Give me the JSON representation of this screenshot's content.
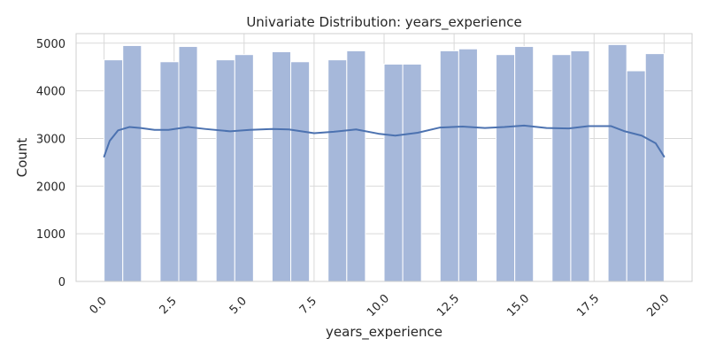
{
  "chart_data": {
    "type": "bar",
    "title": "Univariate Distribution: years_experience",
    "xlabel": "years_experience",
    "ylabel": "Count",
    "xlim": [
      -1.0,
      21.0
    ],
    "ylim": [
      0,
      5200
    ],
    "grid": true,
    "x_ticks": [
      {
        "value": 0.0,
        "label": "0.0"
      },
      {
        "value": 2.5,
        "label": "2.5"
      },
      {
        "value": 5.0,
        "label": "5.0"
      },
      {
        "value": 7.5,
        "label": "7.5"
      },
      {
        "value": 10.0,
        "label": "10.0"
      },
      {
        "value": 12.5,
        "label": "12.5"
      },
      {
        "value": 15.0,
        "label": "15.0"
      },
      {
        "value": 17.5,
        "label": "17.5"
      },
      {
        "value": 20.0,
        "label": "20.0"
      }
    ],
    "y_ticks": [
      {
        "value": 0,
        "label": "0"
      },
      {
        "value": 1000,
        "label": "1000"
      },
      {
        "value": 2000,
        "label": "2000"
      },
      {
        "value": 3000,
        "label": "3000"
      },
      {
        "value": 4000,
        "label": "4000"
      },
      {
        "value": 5000,
        "label": "5000"
      }
    ],
    "bins": [
      {
        "x0": 0.0,
        "x1": 0.667,
        "value": 4650
      },
      {
        "x0": 0.667,
        "x1": 1.333,
        "value": 4950
      },
      {
        "x0": 2.0,
        "x1": 2.667,
        "value": 4610
      },
      {
        "x0": 2.667,
        "x1": 3.333,
        "value": 4930
      },
      {
        "x0": 4.0,
        "x1": 4.667,
        "value": 4650
      },
      {
        "x0": 4.667,
        "x1": 5.333,
        "value": 4760
      },
      {
        "x0": 6.0,
        "x1": 6.667,
        "value": 4820
      },
      {
        "x0": 6.667,
        "x1": 7.333,
        "value": 4610
      },
      {
        "x0": 8.0,
        "x1": 8.667,
        "value": 4650
      },
      {
        "x0": 8.667,
        "x1": 9.333,
        "value": 4840
      },
      {
        "x0": 10.0,
        "x1": 10.667,
        "value": 4560
      },
      {
        "x0": 10.667,
        "x1": 11.333,
        "value": 4560
      },
      {
        "x0": 12.0,
        "x1": 12.667,
        "value": 4840
      },
      {
        "x0": 12.667,
        "x1": 13.333,
        "value": 4880
      },
      {
        "x0": 14.0,
        "x1": 14.667,
        "value": 4760
      },
      {
        "x0": 14.667,
        "x1": 15.333,
        "value": 4930
      },
      {
        "x0": 16.0,
        "x1": 16.667,
        "value": 4760
      },
      {
        "x0": 16.667,
        "x1": 17.333,
        "value": 4840
      },
      {
        "x0": 18.0,
        "x1": 18.667,
        "value": 4970
      },
      {
        "x0": 18.667,
        "x1": 19.333,
        "value": 4420
      },
      {
        "x0": 19.333,
        "x1": 20.0,
        "value": 4780
      }
    ],
    "kde": [
      {
        "x": 0.0,
        "y": 2620
      },
      {
        "x": 0.2,
        "y": 2950
      },
      {
        "x": 0.5,
        "y": 3170
      },
      {
        "x": 0.9,
        "y": 3240
      },
      {
        "x": 1.3,
        "y": 3220
      },
      {
        "x": 1.8,
        "y": 3180
      },
      {
        "x": 2.3,
        "y": 3180
      },
      {
        "x": 3.0,
        "y": 3240
      },
      {
        "x": 3.6,
        "y": 3200
      },
      {
        "x": 4.5,
        "y": 3150
      },
      {
        "x": 5.2,
        "y": 3180
      },
      {
        "x": 6.0,
        "y": 3200
      },
      {
        "x": 6.6,
        "y": 3190
      },
      {
        "x": 7.5,
        "y": 3110
      },
      {
        "x": 8.2,
        "y": 3140
      },
      {
        "x": 9.0,
        "y": 3190
      },
      {
        "x": 9.8,
        "y": 3100
      },
      {
        "x": 10.4,
        "y": 3060
      },
      {
        "x": 11.2,
        "y": 3120
      },
      {
        "x": 12.0,
        "y": 3230
      },
      {
        "x": 12.8,
        "y": 3250
      },
      {
        "x": 13.6,
        "y": 3220
      },
      {
        "x": 14.3,
        "y": 3240
      },
      {
        "x": 15.0,
        "y": 3270
      },
      {
        "x": 15.8,
        "y": 3220
      },
      {
        "x": 16.6,
        "y": 3210
      },
      {
        "x": 17.3,
        "y": 3260
      },
      {
        "x": 18.1,
        "y": 3260
      },
      {
        "x": 18.6,
        "y": 3150
      },
      {
        "x": 19.2,
        "y": 3060
      },
      {
        "x": 19.7,
        "y": 2900
      },
      {
        "x": 20.0,
        "y": 2620
      }
    ]
  },
  "colors": {
    "bar_fill": "#A6B8DA",
    "bar_stroke": "#ffffff",
    "kde_line": "#4C72B0",
    "grid": "#D9D9D9",
    "frame": "#CFCFCF",
    "text": "#262626"
  }
}
